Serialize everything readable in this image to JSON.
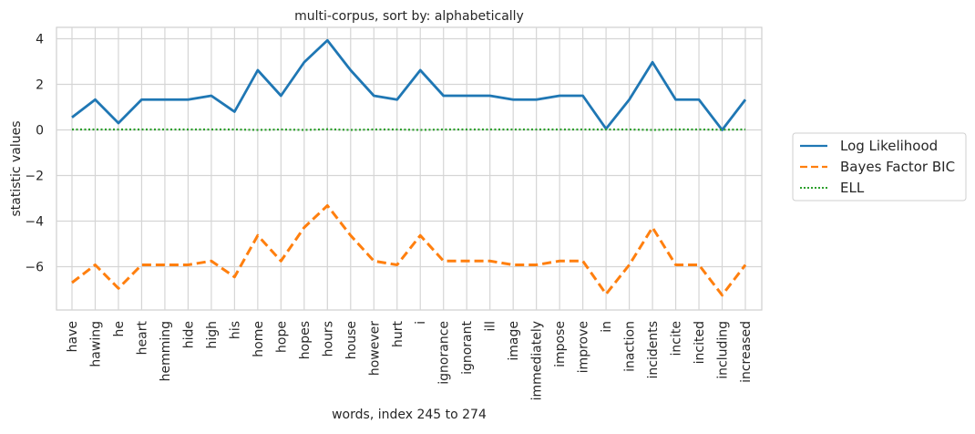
{
  "chart_data": {
    "type": "line",
    "title": "multi-corpus, sort by: alphabetically",
    "xlabel": "words, index 245 to 274",
    "ylabel": "statistic values",
    "categories": [
      "have",
      "hawing",
      "he",
      "heart",
      "hemming",
      "hide",
      "high",
      "his",
      "home",
      "hope",
      "hopes",
      "hours",
      "house",
      "however",
      "hurt",
      "i",
      "ignorance",
      "ignorant",
      "ill",
      "image",
      "immediately",
      "impose",
      "improve",
      "in",
      "inaction",
      "incidents",
      "incite",
      "incited",
      "including",
      "increased"
    ],
    "ylim": [
      -7.9,
      4.5
    ],
    "yticks": [
      4,
      2,
      0,
      -2,
      -4,
      -6
    ],
    "ytick_labels": [
      "4",
      "2",
      "0",
      "−2",
      "−4",
      "−6"
    ],
    "grid": true,
    "legend_position": "right",
    "series": [
      {
        "name": "Log Likelihood",
        "color": "#1f77b4",
        "dash": "solid",
        "values": [
          0.55,
          1.33,
          0.3,
          1.33,
          1.33,
          1.33,
          1.5,
          0.8,
          2.62,
          1.5,
          2.97,
          3.93,
          2.62,
          1.5,
          1.33,
          2.62,
          1.5,
          1.5,
          1.5,
          1.33,
          1.33,
          1.5,
          1.5,
          0.05,
          1.33,
          2.97,
          1.33,
          1.33,
          0.0,
          1.33
        ]
      },
      {
        "name": "Bayes Factor BIC",
        "color": "#ff7f0e",
        "dash": "dashed",
        "values": [
          -6.7,
          -5.92,
          -6.95,
          -5.92,
          -5.92,
          -5.92,
          -5.75,
          -6.45,
          -4.63,
          -5.75,
          -4.28,
          -3.32,
          -4.63,
          -5.75,
          -5.92,
          -4.63,
          -5.75,
          -5.75,
          -5.75,
          -5.92,
          -5.92,
          -5.75,
          -5.75,
          -7.2,
          -5.92,
          -4.28,
          -5.92,
          -5.92,
          -7.25,
          -5.92
        ]
      },
      {
        "name": "ELL",
        "color": "#2ca02c",
        "dash": "dotted",
        "values": [
          0.02,
          0.02,
          0.02,
          0.02,
          0.02,
          0.02,
          0.02,
          0.02,
          0.0,
          0.02,
          0.0,
          0.03,
          0.0,
          0.02,
          0.02,
          0.0,
          0.02,
          0.02,
          0.02,
          0.02,
          0.02,
          0.02,
          0.02,
          0.02,
          0.02,
          0.0,
          0.02,
          0.02,
          0.01,
          0.02
        ]
      }
    ]
  }
}
